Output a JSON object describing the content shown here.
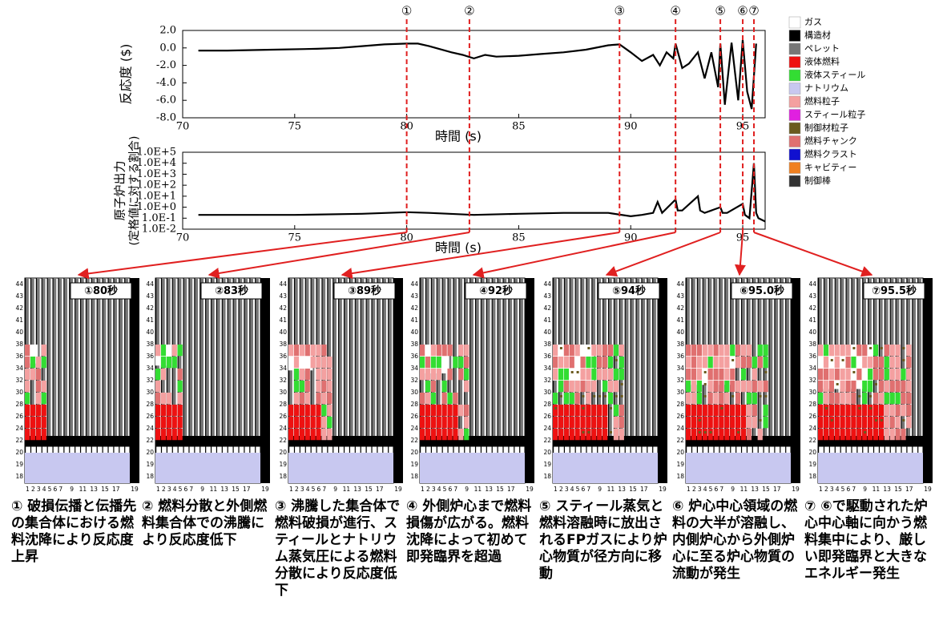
{
  "chart_data": [
    {
      "type": "line",
      "ylabel": "反応度 ($)",
      "xlabel": "時間 (s)",
      "x": [
        70.7,
        72,
        74,
        76,
        77,
        78,
        79,
        80,
        80.5,
        81,
        82,
        82.5,
        83,
        83.5,
        84,
        85,
        86,
        87,
        88,
        89,
        89.5,
        90,
        90.5,
        91,
        91.3,
        91.6,
        91.9,
        92,
        92.3,
        92.6,
        93,
        93.3,
        93.6,
        93.9,
        94,
        94.2,
        94.5,
        94.8,
        95,
        95.2,
        95.4,
        95.6
      ],
      "series": [
        {
          "color": "#000000",
          "values": [
            -0.3,
            -0.3,
            -0.2,
            -0.1,
            0,
            0.2,
            0.4,
            0.5,
            0.5,
            0.2,
            -0.5,
            -0.8,
            -1.2,
            -0.8,
            -1.0,
            -0.9,
            -0.7,
            -0.5,
            -0.2,
            0.3,
            0.4,
            -0.5,
            -1.5,
            -0.8,
            -2.0,
            -0.5,
            -1.2,
            0.5,
            -2.3,
            -1.8,
            -0.5,
            -3.5,
            -0.5,
            -4.5,
            0.5,
            -6.5,
            0.6,
            -6.0,
            0.9,
            -5.0,
            -7.0,
            0.5
          ]
        }
      ],
      "xlim": [
        70,
        96
      ],
      "xticks": [
        70,
        75,
        80,
        85,
        90,
        95
      ],
      "ylim": [
        -8,
        2
      ],
      "yticks": [
        {
          "value": 2,
          "label": "2.0"
        },
        {
          "value": 0,
          "label": "0.0"
        },
        {
          "value": -2,
          "label": "-2.0"
        },
        {
          "value": -4,
          "label": "-4.0"
        },
        {
          "value": -6,
          "label": "-6.0"
        },
        {
          "value": -8,
          "label": "-8.0"
        }
      ]
    },
    {
      "type": "line",
      "ylabel": "原子炉出力",
      "ylabel_sub": "(定格値に対する割合)",
      "xlabel": "時間 (s)",
      "log_y": true,
      "x": [
        70.7,
        72,
        75,
        78,
        80,
        81,
        83,
        85,
        87,
        89,
        90,
        90.5,
        91,
        91.2,
        91.4,
        92,
        92.1,
        92.3,
        93,
        93.1,
        93.3,
        94,
        94.1,
        94.3,
        95,
        95.1,
        95.3,
        95.5,
        95.6,
        95.7,
        96
      ],
      "series": [
        {
          "color": "#000000",
          "values": [
            0.2,
            0.2,
            0.2,
            0.25,
            0.35,
            0.3,
            0.2,
            0.25,
            0.3,
            0.3,
            0.15,
            0.2,
            0.3,
            3,
            0.3,
            5,
            0.5,
            0.5,
            10,
            0.5,
            0.3,
            1,
            0.3,
            0.3,
            2,
            0.2,
            0.1,
            10000,
            0.3,
            0.1,
            0.05
          ]
        }
      ],
      "xlim": [
        70,
        96
      ],
      "xticks": [
        70,
        75,
        80,
        85,
        90,
        95
      ],
      "ylim": [
        0.01,
        100000
      ],
      "yticks": [
        {
          "value": 100000,
          "label": "1.0E+5"
        },
        {
          "value": 10000,
          "label": "1.0E+4"
        },
        {
          "value": 1000,
          "label": "1.0E+3"
        },
        {
          "value": 100,
          "label": "1.0E+2"
        },
        {
          "value": 10,
          "label": "1.0E+1"
        },
        {
          "value": 1,
          "label": "1.0E+0"
        },
        {
          "value": 0.1,
          "label": "1.0E-1"
        },
        {
          "value": 0.01,
          "label": "1.0E-2"
        }
      ]
    }
  ],
  "events": {
    "color": "#e02020",
    "times": [
      80,
      82.8,
      89.5,
      92,
      94,
      95,
      95.5
    ],
    "labels": [
      "①",
      "②",
      "③",
      "④",
      "⑤",
      "⑥",
      "⑦"
    ]
  },
  "legend": {
    "items": [
      {
        "name": "ガス",
        "color": "#ffffff"
      },
      {
        "name": "構造材",
        "color": "#000000"
      },
      {
        "name": "ペレット",
        "color": "#777777"
      },
      {
        "name": "液体燃料",
        "color": "#ee1111"
      },
      {
        "name": "液体スティール",
        "color": "#33dd33"
      },
      {
        "name": "ナトリウム",
        "color": "#c8c8f0"
      },
      {
        "name": "燃料粒子",
        "color": "#f4a0a0"
      },
      {
        "name": "スティール粒子",
        "color": "#e020e0"
      },
      {
        "name": "制御材粒子",
        "color": "#6b5a1e"
      },
      {
        "name": "燃料チャンク",
        "color": "#e07070"
      },
      {
        "name": "燃料クラスト",
        "color": "#1010d0"
      },
      {
        "name": "キャビティー",
        "color": "#f08020"
      },
      {
        "name": "制御棒",
        "color": "#333333"
      }
    ]
  },
  "panel_axis": {
    "yticks": [
      "44",
      "43",
      "42",
      "41",
      "40",
      "38",
      "36",
      "34",
      "32",
      "30",
      "28",
      "26",
      "24",
      "22",
      "20",
      "19",
      "18"
    ],
    "xticks": [
      "1",
      "2",
      "3",
      "4",
      "5",
      "6",
      "7",
      "9",
      "11",
      "13",
      "15",
      "17"
    ],
    "right_label": "19"
  },
  "panels": [
    {
      "label": "①80秒",
      "caption": "① 破損伝播と伝播先の集合体における燃料沈降により反応度上昇"
    },
    {
      "label": "②83秒",
      "caption": "② 燃料分散と外側燃料集合体での沸騰により反応度低下"
    },
    {
      "label": "③89秒",
      "caption": "③ 沸騰した集合体で燃料破損が進行、スティールとナトリウム蒸気圧による燃料分散により反応度低下"
    },
    {
      "label": "④92秒",
      "caption": "④ 外側炉心まで燃料損傷が広がる。燃料沈降によって初めて即発臨界を超過"
    },
    {
      "label": "⑤94秒",
      "caption": "⑤ スティール蒸気と燃料溶融時に放出されるFPガスにより炉心物質が径方向に移動"
    },
    {
      "label": "⑥95.0秒",
      "caption": "⑥ 炉心中心領域の燃料の大半が溶融し、内側炉心から外側炉心に至る炉心物質の流動が発生"
    },
    {
      "label": "⑦95.5秒",
      "caption": "⑦ ⑥で駆動された炉心中心軸に向かう燃料集中により、厳しい即発臨界と大きなエネルギー発生"
    }
  ]
}
